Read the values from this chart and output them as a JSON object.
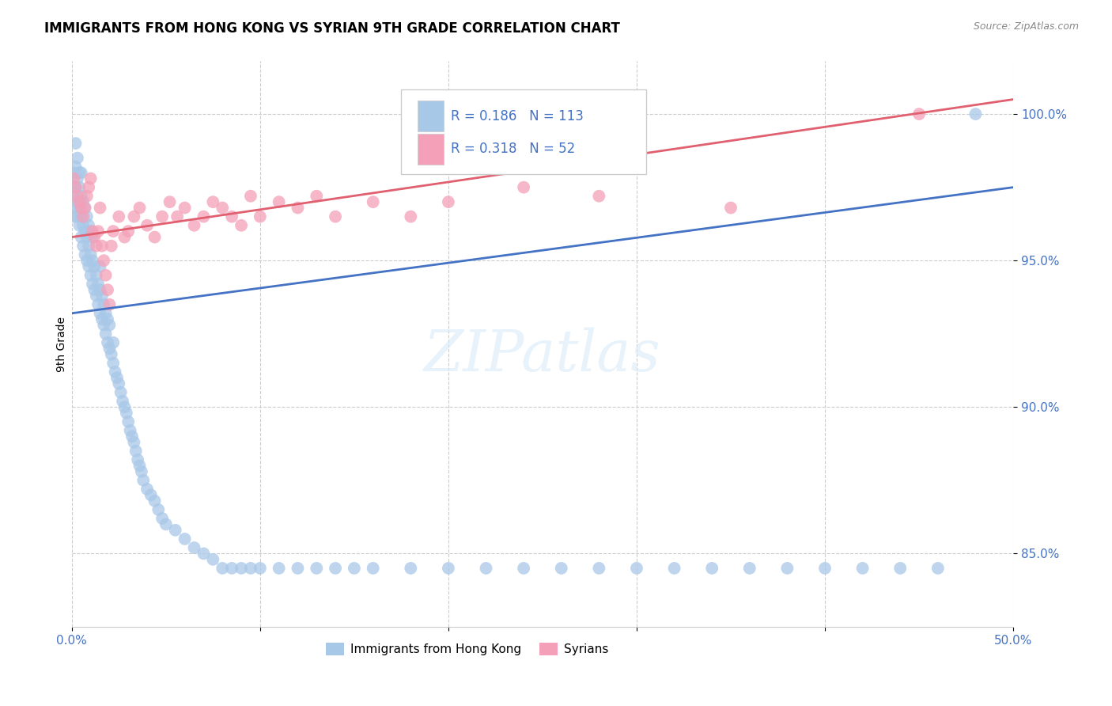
{
  "title": "IMMIGRANTS FROM HONG KONG VS SYRIAN 9TH GRADE CORRELATION CHART",
  "source": "Source: ZipAtlas.com",
  "ylabel": "9th Grade",
  "xlim": [
    0.0,
    0.5
  ],
  "ylim": [
    82.5,
    101.8
  ],
  "hk_R": 0.186,
  "hk_N": 113,
  "sy_R": 0.318,
  "sy_N": 52,
  "hk_color": "#a8c8e8",
  "sy_color": "#f4a0b8",
  "hk_line_color": "#4472c4",
  "sy_line_color": "#e06070",
  "legend_hk_label": "Immigrants from Hong Kong",
  "legend_sy_label": "Syrians",
  "y_tick_vals": [
    85.0,
    90.0,
    95.0,
    100.0
  ],
  "y_tick_labels": [
    "85.0%",
    "90.0%",
    "95.0%",
    "100.0%"
  ],
  "x_tick_vals": [
    0.0,
    0.1,
    0.2,
    0.3,
    0.4,
    0.5
  ],
  "x_tick_labels": [
    "0.0%",
    "",
    "",
    "",
    "",
    "50.0%"
  ],
  "hk_line_x": [
    0.0,
    0.5
  ],
  "hk_line_y": [
    93.2,
    97.5
  ],
  "sy_line_x": [
    0.0,
    0.5
  ],
  "sy_line_y": [
    95.8,
    100.5
  ],
  "hk_scatter_x": [
    0.001,
    0.001,
    0.001,
    0.002,
    0.002,
    0.002,
    0.002,
    0.003,
    0.003,
    0.003,
    0.003,
    0.004,
    0.004,
    0.004,
    0.004,
    0.005,
    0.005,
    0.005,
    0.005,
    0.006,
    0.006,
    0.006,
    0.007,
    0.007,
    0.007,
    0.008,
    0.008,
    0.008,
    0.009,
    0.009,
    0.009,
    0.01,
    0.01,
    0.01,
    0.011,
    0.011,
    0.011,
    0.012,
    0.012,
    0.013,
    0.013,
    0.014,
    0.014,
    0.015,
    0.015,
    0.015,
    0.016,
    0.016,
    0.017,
    0.017,
    0.018,
    0.018,
    0.019,
    0.019,
    0.02,
    0.02,
    0.021,
    0.022,
    0.022,
    0.023,
    0.024,
    0.025,
    0.026,
    0.027,
    0.028,
    0.029,
    0.03,
    0.031,
    0.032,
    0.033,
    0.034,
    0.035,
    0.036,
    0.037,
    0.038,
    0.04,
    0.042,
    0.044,
    0.046,
    0.048,
    0.05,
    0.055,
    0.06,
    0.065,
    0.07,
    0.075,
    0.08,
    0.085,
    0.09,
    0.095,
    0.1,
    0.11,
    0.12,
    0.13,
    0.14,
    0.15,
    0.16,
    0.18,
    0.2,
    0.22,
    0.24,
    0.26,
    0.28,
    0.3,
    0.32,
    0.34,
    0.36,
    0.38,
    0.4,
    0.42,
    0.44,
    0.46,
    0.48
  ],
  "hk_scatter_y": [
    96.5,
    97.2,
    98.0,
    96.8,
    97.5,
    98.2,
    99.0,
    96.5,
    97.0,
    97.8,
    98.5,
    96.2,
    96.8,
    97.5,
    98.0,
    95.8,
    96.5,
    97.2,
    98.0,
    95.5,
    96.2,
    97.0,
    95.2,
    96.0,
    96.8,
    95.0,
    95.8,
    96.5,
    94.8,
    95.5,
    96.2,
    94.5,
    95.2,
    96.0,
    94.2,
    95.0,
    95.8,
    94.0,
    94.8,
    93.8,
    94.5,
    93.5,
    94.2,
    93.2,
    94.0,
    94.8,
    93.0,
    93.8,
    92.8,
    93.5,
    92.5,
    93.2,
    92.2,
    93.0,
    92.0,
    92.8,
    91.8,
    91.5,
    92.2,
    91.2,
    91.0,
    90.8,
    90.5,
    90.2,
    90.0,
    89.8,
    89.5,
    89.2,
    89.0,
    88.8,
    88.5,
    88.2,
    88.0,
    87.8,
    87.5,
    87.2,
    87.0,
    86.8,
    86.5,
    86.2,
    86.0,
    85.8,
    85.5,
    85.2,
    85.0,
    84.8,
    84.5,
    84.5,
    84.5,
    84.5,
    84.5,
    84.5,
    84.5,
    84.5,
    84.5,
    84.5,
    84.5,
    84.5,
    84.5,
    84.5,
    84.5,
    84.5,
    84.5,
    84.5,
    84.5,
    84.5,
    84.5,
    84.5,
    84.5,
    84.5,
    84.5,
    84.5,
    100.0
  ],
  "sy_scatter_x": [
    0.001,
    0.002,
    0.003,
    0.004,
    0.005,
    0.006,
    0.007,
    0.008,
    0.009,
    0.01,
    0.011,
    0.012,
    0.013,
    0.014,
    0.015,
    0.016,
    0.017,
    0.018,
    0.019,
    0.02,
    0.021,
    0.022,
    0.025,
    0.028,
    0.03,
    0.033,
    0.036,
    0.04,
    0.044,
    0.048,
    0.052,
    0.056,
    0.06,
    0.065,
    0.07,
    0.075,
    0.08,
    0.085,
    0.09,
    0.095,
    0.1,
    0.11,
    0.12,
    0.13,
    0.14,
    0.16,
    0.18,
    0.2,
    0.24,
    0.28,
    0.35,
    0.45
  ],
  "sy_scatter_y": [
    97.8,
    97.5,
    97.2,
    97.0,
    96.8,
    96.5,
    96.8,
    97.2,
    97.5,
    97.8,
    96.0,
    95.8,
    95.5,
    96.0,
    96.8,
    95.5,
    95.0,
    94.5,
    94.0,
    93.5,
    95.5,
    96.0,
    96.5,
    95.8,
    96.0,
    96.5,
    96.8,
    96.2,
    95.8,
    96.5,
    97.0,
    96.5,
    96.8,
    96.2,
    96.5,
    97.0,
    96.8,
    96.5,
    96.2,
    97.2,
    96.5,
    97.0,
    96.8,
    97.2,
    96.5,
    97.0,
    96.5,
    97.0,
    97.5,
    97.2,
    96.8,
    100.0
  ]
}
